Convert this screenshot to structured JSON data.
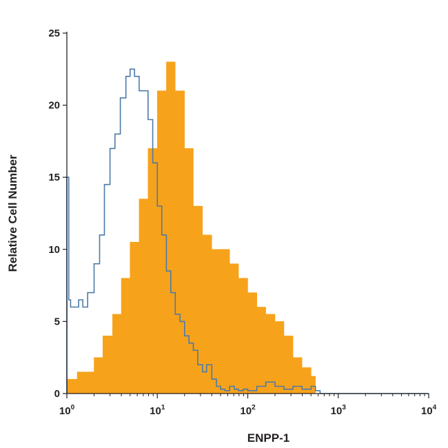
{
  "chart_data": {
    "type": "area",
    "title": "",
    "xlabel": "ENPP-1",
    "ylabel": "Relative Cell Number",
    "x_scale": "log",
    "xlim": [
      1,
      10000
    ],
    "ylim": [
      0,
      25
    ],
    "x_ticks": [
      {
        "value": 1,
        "base": "10",
        "exp": "0"
      },
      {
        "value": 10,
        "base": "10",
        "exp": "1"
      },
      {
        "value": 100,
        "base": "10",
        "exp": "2"
      },
      {
        "value": 1000,
        "base": "10",
        "exp": "3"
      },
      {
        "value": 10000,
        "base": "10",
        "exp": "4"
      }
    ],
    "y_ticks": [
      "0",
      "5",
      "10",
      "15",
      "20",
      "25"
    ],
    "grid": false,
    "series": [
      {
        "style": "filled",
        "color": "#f7a21b",
        "x": [
          1.0,
          1.3,
          1.6,
          2.0,
          2.5,
          3.2,
          4.0,
          5.0,
          6.3,
          7.9,
          10,
          12.6,
          15.8,
          20,
          25,
          31.6,
          40,
          50,
          63,
          79,
          100,
          126,
          158,
          200,
          251,
          316,
          398,
          501,
          560
        ],
        "values": [
          1,
          1.5,
          1.5,
          2.5,
          4,
          5.5,
          8,
          10.5,
          13.5,
          17,
          21,
          23,
          21,
          17,
          13,
          11,
          10,
          10,
          9,
          8,
          7,
          6,
          5.5,
          5,
          4,
          2.5,
          1.8,
          1.2,
          0
        ]
      },
      {
        "style": "outline",
        "color": "#4b7aa8",
        "x": [
          1.0,
          1.05,
          1.1,
          1.2,
          1.35,
          1.5,
          1.7,
          2.0,
          2.3,
          2.6,
          3.0,
          3.4,
          3.9,
          4.5,
          5.0,
          5.6,
          6.3,
          7.1,
          7.9,
          8.9,
          10,
          11.2,
          12.6,
          14.1,
          15.8,
          17.8,
          20,
          22.4,
          25,
          28,
          31.6,
          35,
          40,
          45,
          50,
          56,
          63,
          71,
          79,
          89,
          100,
          126,
          158,
          200,
          251,
          316,
          398,
          501,
          560,
          630,
          1000,
          10000
        ],
        "values": [
          15,
          6.5,
          6,
          6,
          6.5,
          6,
          7,
          9,
          11,
          14.5,
          17,
          18,
          20.5,
          22,
          22.5,
          22,
          21,
          21,
          19,
          16,
          13,
          11,
          8.5,
          7,
          5.5,
          5,
          4,
          3.5,
          3,
          2,
          1.5,
          2,
          1,
          0.5,
          0.3,
          0.2,
          0.5,
          0.3,
          0.2,
          0.3,
          0.2,
          0.5,
          0.8,
          0.5,
          0.3,
          0.5,
          0.3,
          0.5,
          0.2,
          0,
          0,
          0
        ]
      }
    ]
  }
}
